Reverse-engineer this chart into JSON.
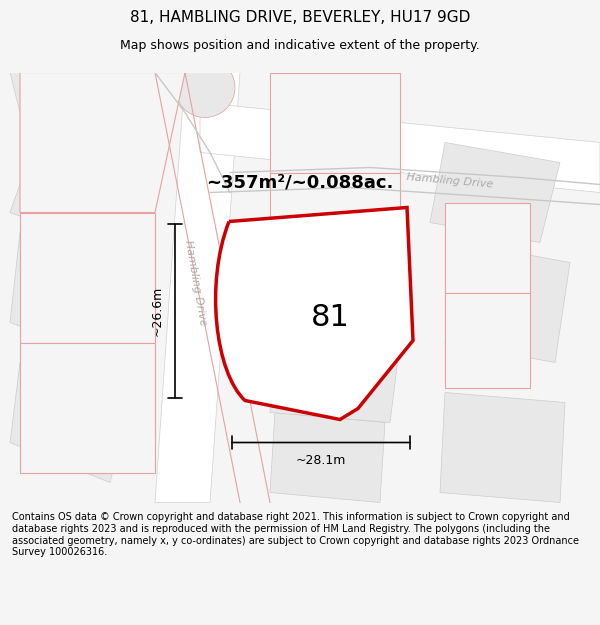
{
  "title": "81, HAMBLING DRIVE, BEVERLEY, HU17 9GD",
  "subtitle": "Map shows position and indicative extent of the property.",
  "footer": "Contains OS data © Crown copyright and database right 2021. This information is subject to Crown copyright and database rights 2023 and is reproduced with the permission of HM Land Registry. The polygons (including the associated geometry, namely x, y co-ordinates) are subject to Crown copyright and database rights 2023 Ordnance Survey 100026316.",
  "area_label": "~357m²/~0.088ac.",
  "plot_number": "81",
  "dim_height": "~26.6m",
  "dim_width": "~28.1m",
  "road_label_left": "Hambling Drive",
  "road_label_right": "Hambling Drive",
  "bg_color": "#f5f5f5",
  "map_bg": "#f8f8f8",
  "plot_fill": "#ffffff",
  "plot_edge_color": "#cc0000",
  "plot_edge_width": 2.5,
  "road_bg_color": "#ffffff",
  "building_fill": "#e8e8e8",
  "other_plot_edge": "#e8a0a0",
  "title_fontsize": 11,
  "subtitle_fontsize": 9,
  "footer_fontsize": 7
}
